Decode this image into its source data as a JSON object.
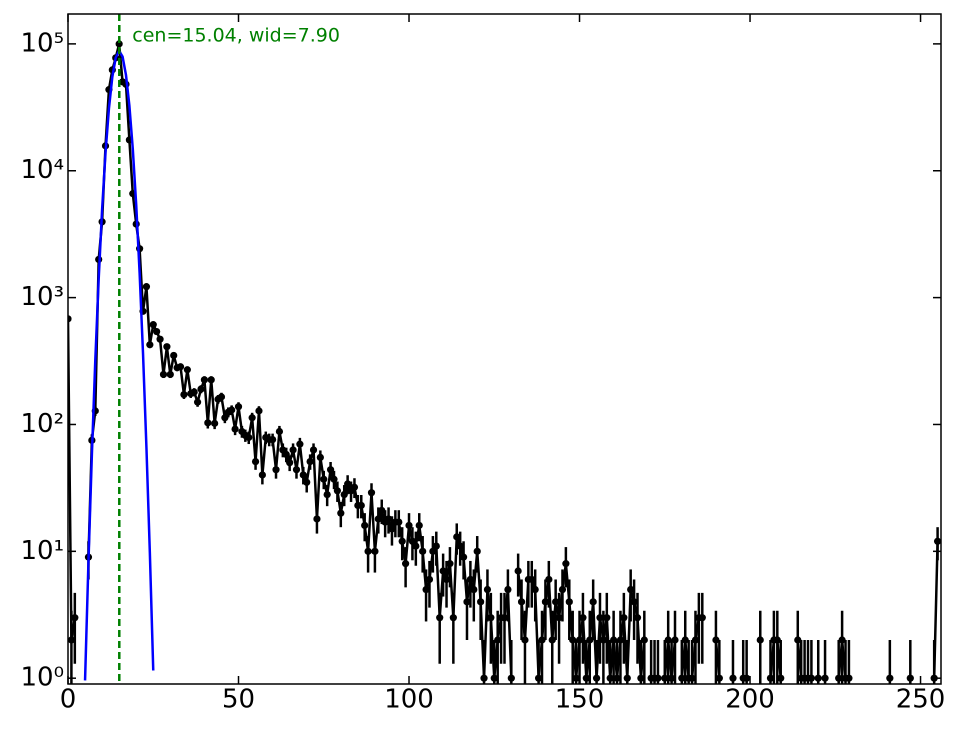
{
  "chart_data": {
    "type": "errorbar",
    "log_y": true,
    "xlim": [
      0,
      256
    ],
    "ylim": [
      0.9,
      172000
    ],
    "xticks": [
      0,
      50,
      100,
      150,
      200,
      250
    ],
    "yticks": [
      {
        "value": 1,
        "label": "10⁰"
      },
      {
        "value": 10,
        "label": "10¹"
      },
      {
        "value": 100,
        "label": "10²"
      },
      {
        "value": 1000,
        "label": "10³"
      },
      {
        "value": 10000,
        "label": "10⁴"
      },
      {
        "value": 100000,
        "label": "10⁵"
      }
    ],
    "series": [
      {
        "color": "#000000",
        "x": [
          0,
          1,
          2,
          3,
          4,
          5,
          6,
          7,
          8,
          9,
          10,
          11,
          12,
          13,
          14,
          15,
          16,
          17,
          18,
          19,
          20,
          21,
          22,
          23,
          24,
          25,
          26,
          27,
          28,
          29,
          30,
          31,
          32,
          33,
          34,
          35,
          36,
          37,
          38,
          39,
          40,
          41,
          42,
          43,
          44,
          45,
          46,
          47,
          48,
          49,
          50,
          51,
          52,
          53,
          54,
          55,
          56,
          57,
          58,
          59,
          60,
          61,
          62,
          63,
          64,
          65,
          66,
          67,
          68,
          69,
          70,
          71,
          72,
          73,
          74,
          75,
          76,
          77,
          78,
          79,
          80,
          81,
          82,
          83,
          84,
          85,
          86,
          87,
          88,
          89,
          90,
          91,
          92,
          93,
          94,
          95,
          96,
          97,
          98,
          99,
          100,
          101,
          102,
          103,
          104,
          105,
          106,
          107,
          108,
          109,
          110,
          111,
          112,
          113,
          114,
          115,
          116,
          117,
          118,
          119,
          120,
          121,
          122,
          123,
          124,
          125,
          126,
          127,
          128,
          129,
          130,
          131,
          132,
          133,
          134,
          135,
          136,
          137,
          138,
          139,
          140,
          141,
          142,
          143,
          144,
          145,
          146,
          147,
          148,
          149,
          150,
          151,
          152,
          153,
          154,
          155,
          156,
          157,
          158,
          159,
          160,
          161,
          162,
          163,
          164,
          165,
          166,
          167,
          168,
          169,
          170,
          171,
          172,
          173,
          174,
          175,
          176,
          177,
          178,
          179,
          180,
          181,
          182,
          183,
          184,
          185,
          186,
          187,
          188,
          189,
          190,
          191,
          192,
          193,
          194,
          195,
          196,
          197,
          198,
          199,
          200,
          201,
          202,
          203,
          204,
          205,
          206,
          207,
          208,
          209,
          210,
          211,
          212,
          213,
          214,
          215,
          216,
          217,
          218,
          219,
          220,
          221,
          222,
          223,
          224,
          225,
          226,
          227,
          228,
          229,
          230,
          231,
          232,
          233,
          234,
          235,
          236,
          237,
          238,
          239,
          240,
          241,
          242,
          243,
          244,
          245,
          246,
          247,
          248,
          249,
          250,
          251,
          252,
          253,
          254,
          255
        ],
        "values": [
          680,
          2,
          3,
          null,
          null,
          null,
          9,
          75,
          128,
          2000,
          3960,
          15700,
          43600,
          62400,
          77600,
          100000,
          50200,
          48000,
          17500,
          6600,
          3800,
          2430,
          780,
          1220,
          425,
          612,
          540,
          470,
          248,
          410,
          248,
          350,
          280,
          285,
          172,
          270,
          175,
          180,
          150,
          190,
          225,
          103,
          225,
          102,
          158,
          165,
          113,
          125,
          130,
          92,
          138,
          88,
          82,
          79,
          113,
          51,
          128,
          40,
          79,
          76,
          76,
          44,
          88,
          63,
          58,
          50,
          63,
          44,
          70,
          40,
          35,
          51,
          63,
          18,
          55,
          37,
          28,
          44,
          37,
          30,
          20,
          28,
          34,
          30,
          32,
          23,
          23,
          16,
          10,
          29,
          10,
          18,
          21,
          17,
          18,
          15,
          17,
          17,
          12,
          8,
          16,
          12,
          11,
          16,
          10,
          5,
          6,
          10,
          11,
          3,
          7,
          6,
          8,
          3,
          13,
          11,
          9,
          4,
          6,
          5,
          10,
          4,
          1,
          5,
          3,
          1,
          2,
          3,
          3,
          5,
          1,
          null,
          7,
          4,
          2,
          6,
          6,
          5,
          1,
          2,
          4,
          6,
          2,
          4,
          3,
          5,
          8,
          4,
          2,
          1,
          2,
          3,
          1,
          2,
          4,
          1,
          3,
          2,
          3,
          1,
          2,
          1,
          2,
          3,
          1,
          5,
          4,
          3,
          1,
          2,
          null,
          1,
          1,
          1,
          null,
          1,
          2,
          1,
          2,
          null,
          1,
          2,
          1,
          1,
          2,
          3,
          3,
          null,
          null,
          null,
          2,
          1,
          null,
          null,
          null,
          1,
          null,
          null,
          1,
          1,
          null,
          null,
          null,
          2,
          null,
          null,
          1,
          2,
          2,
          1,
          null,
          null,
          null,
          null,
          2,
          1,
          1,
          1,
          1,
          null,
          1,
          null,
          1,
          null,
          null,
          null,
          1,
          2,
          1,
          1,
          null,
          null,
          null,
          null,
          null,
          null,
          null,
          null,
          null,
          null,
          null,
          1,
          null,
          null,
          null,
          null,
          null,
          1,
          null,
          null,
          null,
          null,
          null,
          null,
          1,
          12
        ],
        "errors": [
          26.1,
          1.4,
          1.7,
          null,
          null,
          null,
          3,
          8.7,
          11.3,
          44.7,
          62.9,
          125.3,
          208.8,
          249.8,
          278.6,
          316.2,
          224.1,
          219.1,
          132.3,
          81.2,
          61.6,
          49.3,
          27.9,
          34.9,
          20.6,
          24.7,
          23.2,
          21.7,
          15.7,
          20.2,
          15.7,
          18.7,
          16.7,
          16.9,
          13.1,
          16.4,
          13.2,
          13.4,
          12.2,
          13.8,
          15,
          10.1,
          15,
          10.1,
          12.6,
          12.8,
          10.6,
          11.2,
          11.4,
          9.6,
          11.7,
          9.4,
          9.1,
          8.9,
          10.6,
          7.1,
          11.3,
          6.3,
          8.9,
          8.7,
          8.7,
          6.6,
          9.4,
          7.9,
          7.6,
          7.1,
          7.9,
          6.6,
          8.4,
          6.3,
          5.9,
          7.1,
          7.9,
          4.2,
          7.4,
          6.1,
          5.3,
          6.6,
          6.1,
          5.5,
          4.5,
          5.3,
          5.8,
          5.5,
          5.7,
          4.8,
          4.8,
          4,
          3.2,
          5.4,
          3.2,
          4.2,
          4.6,
          4.1,
          4.2,
          3.9,
          4.1,
          4.1,
          3.5,
          2.8,
          4,
          3.5,
          3.3,
          4,
          3.2,
          2.2,
          2.4,
          3.2,
          3.3,
          1.7,
          2.6,
          2.4,
          2.8,
          1.7,
          3.6,
          3.3,
          3,
          2,
          2.4,
          2.2,
          3.2,
          2,
          1,
          2.2,
          1.7,
          1,
          1.4,
          1.7,
          1.7,
          2.2,
          1,
          null,
          2.6,
          2,
          1.4,
          2.4,
          2.4,
          2.2,
          1,
          1.4,
          2,
          2.4,
          1.4,
          2,
          1.7,
          2.2,
          2.8,
          2,
          1.4,
          1,
          1.4,
          1.7,
          1,
          1.4,
          2,
          1,
          1.7,
          1.4,
          1.7,
          1,
          1.4,
          1,
          1.4,
          1.7,
          1,
          2.2,
          2,
          1.7,
          1,
          1.4,
          null,
          1,
          1,
          1,
          null,
          1,
          1.4,
          1,
          1.4,
          null,
          1,
          1.4,
          1,
          1,
          1.4,
          1.7,
          1.7,
          null,
          null,
          null,
          1.4,
          1,
          null,
          null,
          null,
          1,
          null,
          null,
          1,
          1,
          null,
          null,
          null,
          1.4,
          null,
          null,
          1,
          1.4,
          1.4,
          1,
          null,
          null,
          null,
          null,
          1.4,
          1,
          1,
          1,
          1,
          null,
          1,
          null,
          1,
          null,
          null,
          null,
          1,
          1.4,
          1,
          1,
          null,
          null,
          null,
          null,
          null,
          null,
          null,
          null,
          null,
          null,
          null,
          1,
          null,
          null,
          null,
          null,
          null,
          1,
          null,
          null,
          null,
          null,
          null,
          null,
          1,
          3.5
        ]
      },
      {
        "color": "#0000ff",
        "x": [
          5,
          6,
          7,
          8,
          9,
          10,
          11,
          12,
          13,
          14,
          15,
          16,
          17,
          18,
          19,
          20,
          21,
          22,
          23,
          24,
          25
        ],
        "values": [
          0.96,
          8.3,
          57.7,
          319,
          1402,
          4938,
          13840,
          30870,
          54900,
          77850,
          88000,
          79300,
          56900,
          32580,
          14850,
          5400,
          1565,
          363,
          66,
          9.8,
          1.15
        ]
      }
    ],
    "vline": {
      "x": 15.04,
      "color": "#008000"
    },
    "annotation": {
      "text": "cen=15.04, wid=7.90",
      "color": "#008000"
    }
  }
}
